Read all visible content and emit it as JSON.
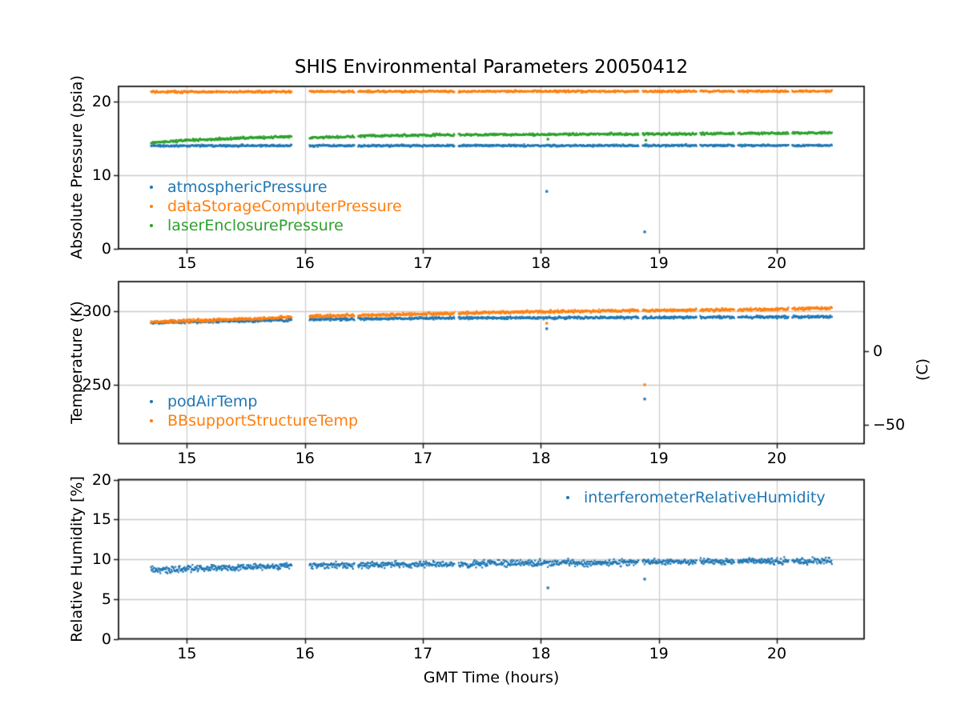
{
  "figure": {
    "title": "SHIS Environmental Parameters 20050412",
    "xlabel": "GMT Time (hours)"
  },
  "colors": {
    "blue": "#1f77b4",
    "orange": "#ff7f0e",
    "green": "#2ca02c",
    "grid": "#cccccc",
    "axis": "#1a1a1a"
  },
  "x_axis": {
    "lim": [
      14.42,
      20.74
    ],
    "ticks": [
      15,
      16,
      17,
      18,
      19,
      20
    ],
    "data_range": [
      14.695,
      20.47
    ]
  },
  "gaps": {
    "main": [
      15.89,
      16.035
    ],
    "micro": [
      [
        16.42,
        16.45
      ],
      [
        17.27,
        17.3
      ],
      [
        18.83,
        18.86
      ],
      [
        19.32,
        19.35
      ],
      [
        19.64,
        19.67
      ],
      [
        20.1,
        20.13
      ]
    ]
  },
  "chart_data": [
    {
      "type": "scatter",
      "ylabel": "Absolute Pressure (psia)",
      "ylim": [
        0,
        22.07
      ],
      "yticks": [
        0,
        10,
        20
      ],
      "legend": {
        "position": "lower-left"
      },
      "series": [
        {
          "name": "atmosphericPressure",
          "color": "#1f77b4",
          "noise": 0.07,
          "points": [
            [
              14.7,
              14.0
            ],
            [
              20.47,
              14.05
            ]
          ],
          "outliers": [
            [
              18.05,
              7.8
            ],
            [
              18.88,
              2.3
            ]
          ]
        },
        {
          "name": "dataStorageComputerPressure",
          "color": "#ff7f0e",
          "noise": 0.07,
          "points": [
            [
              14.7,
              21.32
            ],
            [
              16.5,
              21.38
            ],
            [
              20.47,
              21.42
            ]
          ],
          "outliers": []
        },
        {
          "name": "laserEnclosurePressure",
          "color": "#2ca02c",
          "noise": 0.08,
          "points": [
            [
              14.7,
              14.42
            ],
            [
              15.0,
              14.75
            ],
            [
              15.4,
              15.0
            ],
            [
              15.89,
              15.25
            ],
            [
              16.035,
              15.05
            ],
            [
              16.5,
              15.32
            ],
            [
              17.0,
              15.45
            ],
            [
              18.0,
              15.55
            ],
            [
              19.0,
              15.6
            ],
            [
              20.0,
              15.7
            ],
            [
              20.47,
              15.78
            ]
          ],
          "outliers": [
            [
              18.06,
              14.9
            ],
            [
              18.89,
              14.75
            ]
          ]
        }
      ]
    },
    {
      "type": "scatter",
      "ylabel": "Temperature (K)",
      "ylim": [
        210.2,
        320.3
      ],
      "yticks": [
        250,
        300
      ],
      "right_axis": {
        "label": "(C)",
        "ticks": [
          0,
          -50
        ],
        "offset_K": 273.15
      },
      "legend": {
        "position": "lower-left"
      },
      "series": [
        {
          "name": "podAirTemp",
          "color": "#1f77b4",
          "noise": 0.45,
          "points": [
            [
              14.7,
              292.4
            ],
            [
              15.3,
              293.3
            ],
            [
              15.89,
              294.2
            ],
            [
              16.035,
              294.6
            ],
            [
              16.6,
              295.0
            ],
            [
              17.1,
              295.4
            ],
            [
              18.0,
              295.7
            ],
            [
              19.0,
              295.9
            ],
            [
              20.0,
              296.2
            ],
            [
              20.47,
              296.4
            ]
          ],
          "outliers": [
            [
              18.05,
              288.3
            ],
            [
              18.88,
              240.5
            ]
          ]
        },
        {
          "name": "BBsupportStructureTemp",
          "color": "#ff7f0e",
          "noise": 0.5,
          "points": [
            [
              14.7,
              292.8
            ],
            [
              15.3,
              294.3
            ],
            [
              15.89,
              296.2
            ],
            [
              16.035,
              296.8
            ],
            [
              16.6,
              297.6
            ],
            [
              17.1,
              298.4
            ],
            [
              17.6,
              299.3
            ],
            [
              18.0,
              299.8
            ],
            [
              18.6,
              300.4
            ],
            [
              19.2,
              300.9
            ],
            [
              19.8,
              301.3
            ],
            [
              20.47,
              302.3
            ]
          ],
          "outliers": [
            [
              18.05,
              292.0
            ],
            [
              18.88,
              250.2
            ]
          ]
        }
      ]
    },
    {
      "type": "scatter",
      "ylabel": "Relative Humidity [%]",
      "ylim": [
        0,
        20
      ],
      "yticks": [
        0,
        5,
        10,
        15,
        20
      ],
      "legend": {
        "position": "upper-right"
      },
      "series": [
        {
          "name": "interferometerRelativeHumidity",
          "color": "#1f77b4",
          "noise": 0.2,
          "points": [
            [
              14.7,
              8.6
            ],
            [
              15.1,
              8.85
            ],
            [
              15.5,
              9.0
            ],
            [
              15.89,
              9.15
            ],
            [
              16.035,
              9.2
            ],
            [
              16.8,
              9.3
            ],
            [
              17.5,
              9.45
            ],
            [
              18.2,
              9.55
            ],
            [
              19.0,
              9.65
            ],
            [
              19.8,
              9.72
            ],
            [
              20.47,
              9.78
            ]
          ],
          "outliers": [
            [
              18.06,
              6.4
            ],
            [
              18.88,
              7.5
            ]
          ]
        }
      ]
    }
  ]
}
